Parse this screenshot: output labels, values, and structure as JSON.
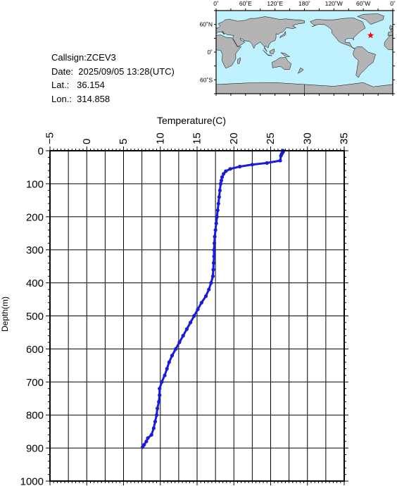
{
  "info": {
    "callsign": "Callsign:ZCEV3",
    "date": "Date:  2025/09/05 13:28(UTC)",
    "lat": "Lat.:   36.154",
    "lon": "Lon.:  314.858"
  },
  "map": {
    "top_labels": [
      "0˚",
      "60˚E",
      "120˚E",
      "180˚",
      "120˚W",
      "60˚W",
      "0˚"
    ],
    "left_labels": [
      "60˚N",
      "0˚",
      "60˚S"
    ],
    "ocean_color": "#bff1ff",
    "land_color": "#b4b4b4",
    "marker": {
      "lon": 314.858,
      "lat": 36.154,
      "color": "#ff0000",
      "icon": "star-icon"
    }
  },
  "chart_data": {
    "type": "scatter",
    "xlabel": "Temperature(C)",
    "ylabel": "Depth(m)",
    "xlim": [
      -5,
      35
    ],
    "ylim": [
      1000,
      0
    ],
    "x_ticks": [
      "−5",
      "0",
      "5",
      "10",
      "15",
      "20",
      "25",
      "30",
      "35"
    ],
    "x_tick_values": [
      -5,
      0,
      5,
      10,
      15,
      20,
      25,
      30,
      35
    ],
    "y_ticks": [
      "0",
      "100",
      "200",
      "300",
      "400",
      "500",
      "600",
      "700",
      "800",
      "900",
      "1000"
    ],
    "y_tick_values": [
      0,
      100,
      200,
      300,
      400,
      500,
      600,
      700,
      800,
      900,
      1000
    ],
    "grid": true,
    "series_color": "#1a1adc",
    "series": [
      {
        "points": [
          [
            26.7,
            0
          ],
          [
            26.7,
            3
          ],
          [
            26.6,
            6
          ],
          [
            26.5,
            10
          ],
          [
            26.4,
            15
          ],
          [
            26.3,
            30
          ],
          [
            24.5,
            37
          ],
          [
            22.5,
            42
          ],
          [
            20.8,
            48
          ],
          [
            19.5,
            55
          ],
          [
            18.9,
            62
          ],
          [
            18.6,
            70
          ],
          [
            18.4,
            80
          ],
          [
            18.3,
            90
          ],
          [
            18.2,
            100
          ],
          [
            18.1,
            120
          ],
          [
            18.0,
            140
          ],
          [
            17.9,
            160
          ],
          [
            17.8,
            180
          ],
          [
            17.7,
            200
          ],
          [
            17.6,
            220
          ],
          [
            17.5,
            240
          ],
          [
            17.4,
            260
          ],
          [
            17.35,
            280
          ],
          [
            17.3,
            300
          ],
          [
            17.3,
            320
          ],
          [
            17.25,
            340
          ],
          [
            17.2,
            360
          ],
          [
            17.15,
            380
          ],
          [
            16.9,
            400
          ],
          [
            16.6,
            420
          ],
          [
            16.2,
            440
          ],
          [
            15.6,
            460
          ],
          [
            15.1,
            480
          ],
          [
            14.6,
            500
          ],
          [
            14.1,
            520
          ],
          [
            13.6,
            540
          ],
          [
            13.1,
            560
          ],
          [
            12.6,
            580
          ],
          [
            12.1,
            600
          ],
          [
            11.6,
            620
          ],
          [
            11.2,
            640
          ],
          [
            10.9,
            660
          ],
          [
            10.6,
            680
          ],
          [
            10.2,
            700
          ],
          [
            9.9,
            720
          ],
          [
            9.9,
            740
          ],
          [
            9.8,
            760
          ],
          [
            9.6,
            780
          ],
          [
            9.5,
            800
          ],
          [
            9.3,
            820
          ],
          [
            9.1,
            840
          ],
          [
            8.8,
            860
          ],
          [
            8.3,
            870
          ],
          [
            8.1,
            880
          ],
          [
            7.8,
            890
          ],
          [
            7.6,
            897
          ]
        ]
      }
    ]
  }
}
